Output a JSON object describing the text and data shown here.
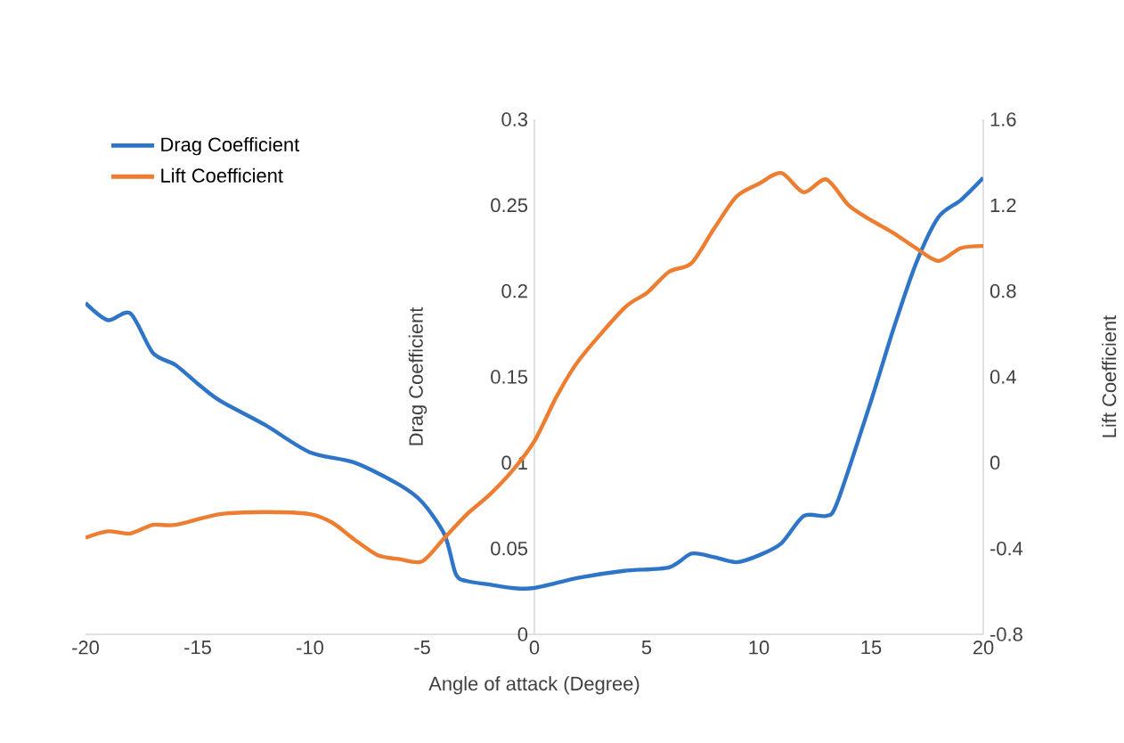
{
  "chart_data": {
    "type": "line",
    "xlabel": "Angle of attack (Degree)",
    "ylabel": "Drag Coefficient",
    "y2label": "Lift Coefficient",
    "xlim": [
      -20,
      20
    ],
    "xticks": [
      -20,
      -15,
      -10,
      -5,
      0,
      5,
      10,
      15,
      20
    ],
    "ylim": [
      0,
      0.3
    ],
    "yticks": [
      0,
      0.05,
      0.1,
      0.15,
      0.2,
      0.25,
      0.3
    ],
    "y2lim": [
      -0.8,
      1.6
    ],
    "y2ticks": [
      -0.8,
      -0.4,
      0,
      0.4,
      0.8,
      1.2,
      1.6
    ],
    "legend": "top left",
    "series": [
      {
        "name": "Drag Coefficient",
        "color": "#2e75c8",
        "axis": "y",
        "x": [
          -20,
          -19,
          -18,
          -17,
          -16,
          -15,
          -14,
          -12,
          -10,
          -8,
          -6,
          -5,
          -4,
          -3.5,
          -3,
          -2,
          -1,
          0,
          2,
          4,
          6,
          7,
          8,
          9,
          10,
          11,
          12,
          13,
          13.5,
          15,
          16,
          17,
          18,
          19,
          20
        ],
        "values": [
          0.193,
          0.183,
          0.187,
          0.164,
          0.157,
          0.146,
          0.136,
          0.122,
          0.106,
          0.1,
          0.087,
          0.077,
          0.058,
          0.035,
          0.031,
          0.029,
          0.027,
          0.027,
          0.033,
          0.037,
          0.039,
          0.047,
          0.045,
          0.042,
          0.046,
          0.053,
          0.069,
          0.069,
          0.077,
          0.136,
          0.178,
          0.216,
          0.243,
          0.253,
          0.266
        ]
      },
      {
        "name": "Lift Coefficient",
        "color": "#ed7d31",
        "axis": "y2",
        "x": [
          -20,
          -19,
          -18,
          -17,
          -16,
          -14,
          -12,
          -10,
          -9,
          -8,
          -7,
          -6,
          -5,
          -4,
          -3,
          -2,
          -1,
          0,
          1,
          2,
          4,
          5,
          6,
          7,
          8,
          9,
          10,
          11,
          12,
          13,
          14,
          15,
          16,
          17,
          18,
          19,
          20
        ],
        "values": [
          -0.35,
          -0.32,
          -0.33,
          -0.29,
          -0.29,
          -0.24,
          -0.23,
          -0.24,
          -0.28,
          -0.36,
          -0.43,
          -0.45,
          -0.46,
          -0.35,
          -0.24,
          -0.15,
          -0.04,
          0.1,
          0.31,
          0.48,
          0.72,
          0.79,
          0.89,
          0.93,
          1.09,
          1.24,
          1.3,
          1.35,
          1.26,
          1.32,
          1.2,
          1.13,
          1.07,
          1.0,
          0.94,
          1.0,
          1.01
        ]
      }
    ]
  }
}
